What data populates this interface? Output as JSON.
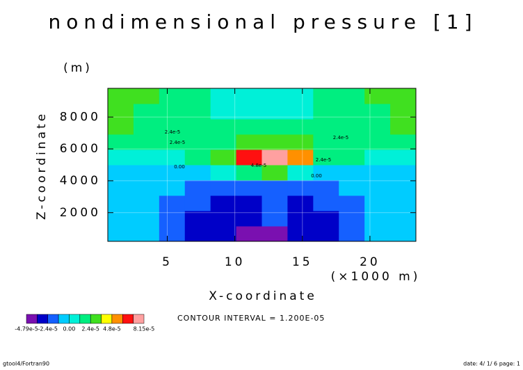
{
  "chart_data": {
    "type": "contour",
    "title": "nondimensional pressure [1]",
    "xlabel": "X-coordinate",
    "xunit": "(×1000 m)",
    "ylabel": "Z-coordinate",
    "yunit": "(m)",
    "xlim": [
      0.6,
      23.4
    ],
    "ylim": [
      200,
      9800
    ],
    "xticks": [
      5,
      10,
      15,
      20
    ],
    "yticks": [
      2000,
      4000,
      6000,
      8000
    ],
    "x": [
      1.55,
      3.45,
      5.35,
      7.25,
      9.15,
      11.05,
      12.95,
      14.85,
      16.75,
      18.65,
      20.55,
      22.45
    ],
    "y": [
      680,
      1640,
      2600,
      3560,
      4520,
      5480,
      6440,
      7400,
      8360,
      9320
    ],
    "z": [
      [
        -5e-06,
        -8e-06,
        -1.5e-05,
        -2.6e-05,
        -3e-05,
        -4e-05,
        -4.79e-05,
        -3e-05,
        -2.6e-05,
        -1.6e-05,
        -8e-06,
        -4e-06
      ],
      [
        -5e-06,
        -8e-06,
        -1.4e-05,
        -2.6e-05,
        -2.8e-05,
        -2.6e-05,
        -2e-05,
        -2.7e-05,
        -2.6e-05,
        -1.5e-05,
        -8e-06,
        -4e-06
      ],
      [
        -4e-06,
        -7e-06,
        -1.3e-05,
        -2e-05,
        -2.6e-05,
        -2.5e-05,
        -2.3e-05,
        -2.6e-05,
        -2e-05,
        -1.3e-05,
        -6e-06,
        -3e-06
      ],
      [
        -3e-06,
        -5e-06,
        -9e-06,
        -1.3e-05,
        -1.4e-05,
        -1.5e-05,
        -1.5e-05,
        -1.4e-05,
        -1.3e-05,
        -9e-06,
        -5e-06,
        -3e-06
      ],
      [
        -2e-06,
        -3e-06,
        -4e-06,
        -5e-06,
        2e-06,
        2e-05,
        3e-05,
        1e-05,
        -2e-06,
        -4e-06,
        -3e-06,
        -2e-06
      ],
      [
        2e-06,
        4e-06,
        8e-06,
        1.3e-05,
        2.5e-05,
        6.5e-05,
        8.15e-05,
        5.5e-05,
        2e-05,
        1.2e-05,
        6e-06,
        2e-06
      ],
      [
        2e-05,
        1.8e-05,
        1.9e-05,
        2e-05,
        2.3e-05,
        2.8e-05,
        3e-05,
        2.6e-05,
        2.2e-05,
        1.9e-05,
        1.8e-05,
        2e-05
      ],
      [
        2.6e-05,
        2e-05,
        1.6e-05,
        1.4e-05,
        1.3e-05,
        1.3e-05,
        1.3e-05,
        1.3e-05,
        1.4e-05,
        1.6e-05,
        2e-05,
        2.6e-05
      ],
      [
        3e-05,
        2.2e-05,
        1.6e-05,
        1.3e-05,
        1e-05,
        8e-06,
        8e-06,
        1e-05,
        1.3e-05,
        1.6e-05,
        2.2e-05,
        3e-05
      ],
      [
        3.4e-05,
        2.4e-05,
        1.7e-05,
        1.3e-05,
        9e-06,
        7e-06,
        7e-06,
        9e-06,
        1.3e-05,
        1.7e-05,
        2.4e-05,
        3.4e-05
      ]
    ],
    "levels": [
      -4.79e-05,
      -3.6e-05,
      -2.4e-05,
      -1.2e-05,
      0,
      1.2e-05,
      2.4e-05,
      3.6e-05,
      4.8e-05,
      6e-05,
      7.2e-05,
      8.15e-05
    ],
    "colors": [
      "#7a10b0",
      "#0000c8",
      "#1560ff",
      "#00ccff",
      "#00f0d8",
      "#00ee80",
      "#40e020",
      "#ffff00",
      "#ff9000",
      "#ff1010",
      "#ffa0a0"
    ],
    "colorbar_ticks": [
      {
        "value": -4.79e-05,
        "label": "-4.79e-5"
      },
      {
        "value": -2.4e-05,
        "label": "-2.4e-5"
      },
      {
        "value": 0,
        "label": "0.00"
      },
      {
        "value": 2.4e-05,
        "label": "2.4e-5"
      },
      {
        "value": 4.8e-05,
        "label": "4.8e-5"
      },
      {
        "value": 8.15e-05,
        "label": "8.15e-5"
      }
    ],
    "contour_labels": [
      "2.4e-5",
      "2.4e-5",
      "0.00",
      "2.4e-5",
      "2.4e-5",
      "0.00",
      "4.8e-5"
    ],
    "note": "CONTOUR INTERVAL = 1.200E-05",
    "footer_left": "gtool4/Fortran90",
    "footer_right": "date: 4/ 1/ 6 page: 1"
  }
}
